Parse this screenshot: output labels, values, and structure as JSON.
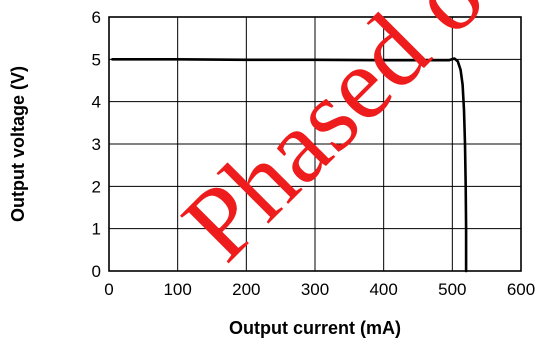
{
  "chart_data": {
    "type": "line",
    "title": "",
    "xlabel": "Output current (mA)",
    "ylabel": "Output voltage (V)",
    "xlim": [
      0,
      600
    ],
    "ylim": [
      0,
      6
    ],
    "x_ticks": [
      "0",
      "100",
      "200",
      "300",
      "400",
      "500",
      "600"
    ],
    "y_ticks": [
      "0",
      "1",
      "2",
      "3",
      "4",
      "5",
      "6"
    ],
    "grid": true,
    "legend": "none",
    "series": [
      {
        "color": "#000000",
        "x": [
          5,
          100,
          200,
          300,
          400,
          495,
          503,
          508,
          512,
          515,
          517,
          518.5,
          519.5,
          520,
          520
        ],
        "y": [
          5.0,
          5.0,
          4.99,
          4.99,
          4.98,
          4.98,
          5.02,
          4.95,
          4.75,
          4.4,
          3.8,
          3.0,
          2.0,
          1.0,
          0.0
        ]
      }
    ]
  },
  "watermark": {
    "text": "Phased out",
    "color": "#ee1c1c"
  }
}
